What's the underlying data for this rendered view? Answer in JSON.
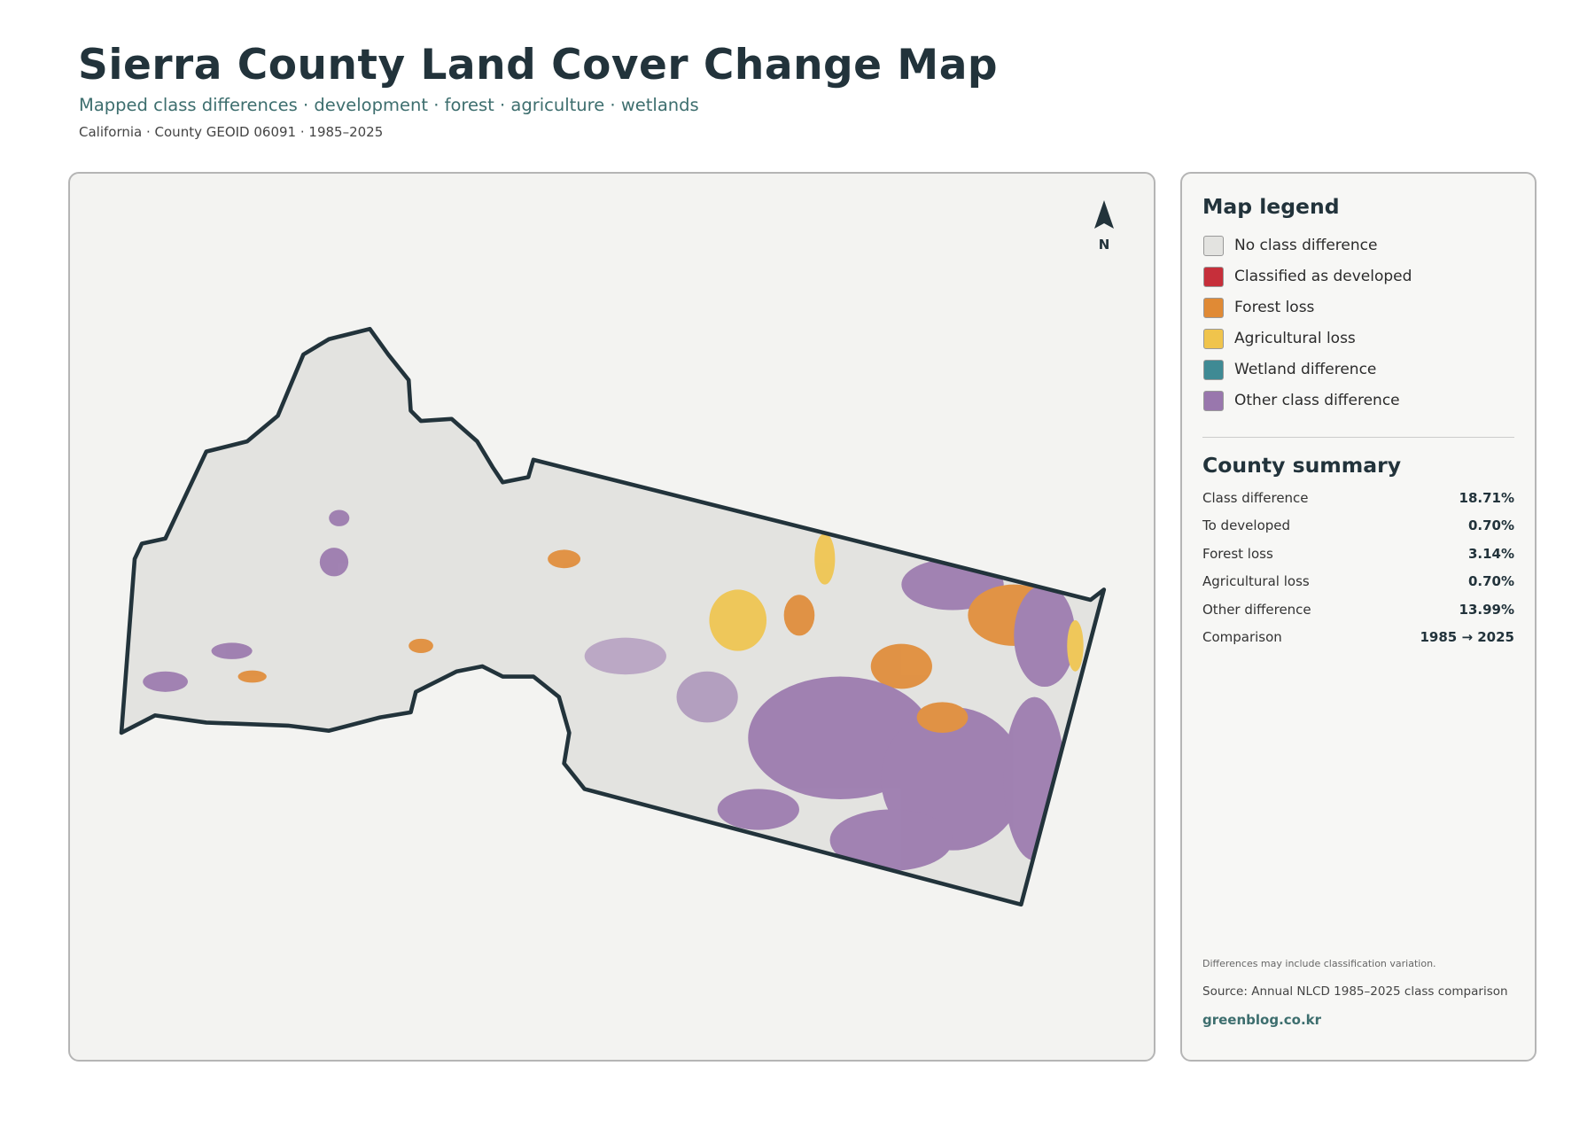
{
  "header": {
    "title": "Sierra County Land Cover Change Map",
    "subtitle": "Mapped class differences · development · forest · agriculture · wetlands",
    "meta": "California · County GEOID 06091 · 1985–2025"
  },
  "map": {
    "north_label": "N"
  },
  "legend": {
    "title": "Map legend",
    "items": [
      {
        "label": "No class difference",
        "color": "#e3e3e0"
      },
      {
        "label": "Classified as developed",
        "color": "#c62f3a"
      },
      {
        "label": "Forest loss",
        "color": "#e08a35"
      },
      {
        "label": "Agricultural loss",
        "color": "#f0c44c"
      },
      {
        "label": "Wetland difference",
        "color": "#3f8a94"
      },
      {
        "label": "Other class difference",
        "color": "#9977ad"
      }
    ]
  },
  "summary": {
    "title": "County summary",
    "rows": [
      {
        "label": "Class difference",
        "value": "18.71%"
      },
      {
        "label": "To developed",
        "value": "0.70%"
      },
      {
        "label": "Forest loss",
        "value": "3.14%"
      },
      {
        "label": "Agricultural loss",
        "value": "0.70%"
      },
      {
        "label": "Other difference",
        "value": "13.99%"
      },
      {
        "label": "Comparison",
        "value": "1985 → 2025"
      }
    ]
  },
  "footer": {
    "note": "Differences may include classification variation.",
    "source": "Source: Annual NLCD 1985–2025 class comparison",
    "brand": "greenblog.co.kr"
  }
}
